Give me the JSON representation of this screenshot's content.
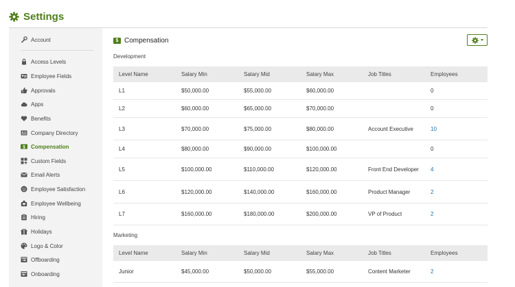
{
  "page": {
    "title": "Settings"
  },
  "colors": {
    "brand": "#4e7e19",
    "link": "#1a6fb0",
    "sidebar_bg": "#f3f3f3",
    "header_bg": "#eaeaea"
  },
  "sidebar": {
    "items": [
      {
        "label": "Account",
        "icon": "wrench-icon"
      },
      {
        "label": "Access Levels",
        "icon": "lock-icon"
      },
      {
        "label": "Employee Fields",
        "icon": "id-card-icon"
      },
      {
        "label": "Approvals",
        "icon": "thumbs-up-icon"
      },
      {
        "label": "Apps",
        "icon": "cloud-icon"
      },
      {
        "label": "Benefits",
        "icon": "heart-icon"
      },
      {
        "label": "Company Directory",
        "icon": "address-book-icon"
      },
      {
        "label": "Compensation",
        "icon": "money-icon",
        "active": true
      },
      {
        "label": "Custom Fields",
        "icon": "grid-plus-icon"
      },
      {
        "label": "Email Alerts",
        "icon": "envelope-icon"
      },
      {
        "label": "Employee Satisfaction",
        "icon": "smiley-icon"
      },
      {
        "label": "Employee Wellbeing",
        "icon": "wellbeing-icon"
      },
      {
        "label": "Hiring",
        "icon": "clipboard-icon"
      },
      {
        "label": "Holidays",
        "icon": "gift-icon"
      },
      {
        "label": "Logo & Color",
        "icon": "palette-icon"
      },
      {
        "label": "Offboarding",
        "icon": "offboarding-icon"
      },
      {
        "label": "Onboarding",
        "icon": "onboarding-icon"
      }
    ]
  },
  "main": {
    "section_title": "Compensation",
    "settings_button": {
      "icon": "gear-icon"
    },
    "columns": [
      "Level Name",
      "Salary Min",
      "Salary Mid",
      "Salary Max",
      "Job Titles",
      "Employees"
    ],
    "groups": [
      {
        "name": "Development",
        "rows": [
          {
            "level": "L1",
            "min": "$50,000.00",
            "mid": "$55,000.00",
            "max": "$60,000.00",
            "titles": "",
            "employees": "0"
          },
          {
            "level": "L2",
            "min": "$60,000.00",
            "mid": "$65,000.00",
            "max": "$70,000.00",
            "titles": "",
            "employees": "0"
          },
          {
            "level": "L3",
            "min": "$70,000.00",
            "mid": "$75,000.00",
            "max": "$80,000.00",
            "titles": "Account Executive",
            "employees": "10"
          },
          {
            "level": "L4",
            "min": "$80,000.00",
            "mid": "$90,000.00",
            "max": "$100,000.00",
            "titles": "",
            "employees": "0"
          },
          {
            "level": "L5",
            "min": "$100,000.00",
            "mid": "$110,000.00",
            "max": "$120,000.00",
            "titles": "Front End Developer",
            "employees": "4"
          },
          {
            "level": "L6",
            "min": "$120,000.00",
            "mid": "$140,000.00",
            "max": "$160,000.00",
            "titles": "Product Manager",
            "employees": "2"
          },
          {
            "level": "L7",
            "min": "$160,000.00",
            "mid": "$180,000.00",
            "max": "$200,000.00",
            "titles": "VP of Product",
            "employees": "2"
          }
        ]
      },
      {
        "name": "Marketing",
        "rows": [
          {
            "level": "Junior",
            "min": "$45,000.00",
            "mid": "$50,000.00",
            "max": "$55,000.00",
            "titles": "Content Marketer",
            "employees": "2"
          }
        ]
      }
    ]
  }
}
